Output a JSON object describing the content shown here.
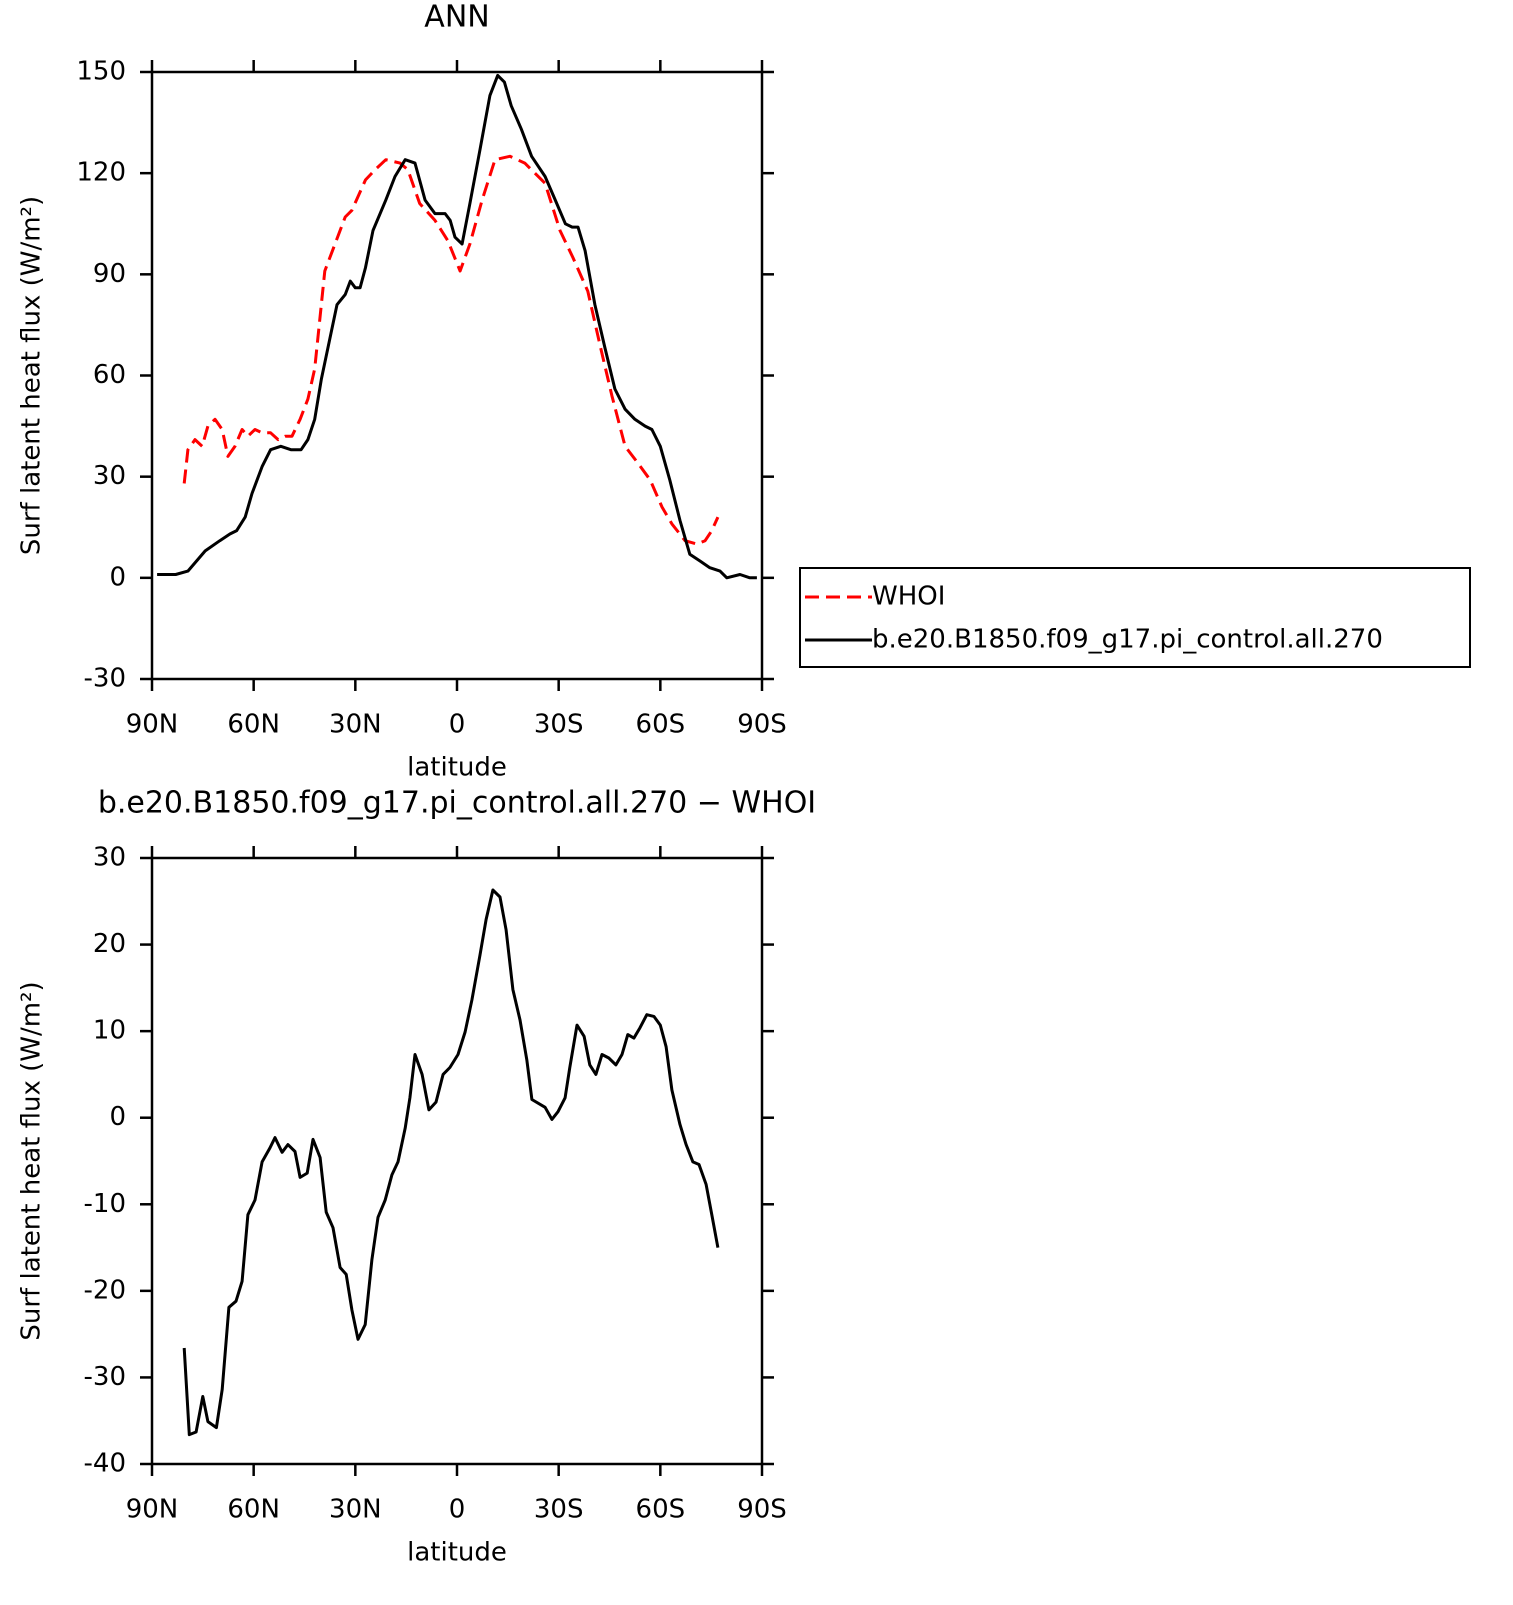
{
  "chart_data": [
    {
      "type": "line",
      "title": "ANN",
      "xlabel": "latitude",
      "ylabel": "Surf latent heat flux (W/m²)",
      "xlim": [
        90,
        -90
      ],
      "xticks": [
        {
          "value": 90,
          "label": "90N"
        },
        {
          "value": 60,
          "label": "60N"
        },
        {
          "value": 30,
          "label": "30N"
        },
        0,
        {
          "value": -30,
          "label": "30S"
        },
        {
          "value": -60,
          "label": "60S"
        },
        {
          "value": -90,
          "label": "90S"
        }
      ],
      "ylim": [
        -30,
        150
      ],
      "yticks": [
        -30,
        0,
        30,
        60,
        90,
        120,
        150
      ],
      "legend": "right",
      "series": [
        {
          "name": "WHOI",
          "color": "#ff0000",
          "dash": "dashed",
          "x": [
            80.5,
            79.4,
            77.3,
            75.2,
            73.5,
            71.4,
            69.3,
            67.6,
            65.5,
            63.4,
            61.7,
            59.6,
            57.5,
            55,
            52.8,
            50.7,
            48.7,
            46.3,
            44,
            42,
            39,
            36,
            33,
            31,
            27,
            24.2,
            21,
            16.8,
            14.5,
            11,
            6.5,
            2.7,
            -0.9,
            -3.8,
            -7.4,
            -11.2,
            -15.6,
            -20,
            -26,
            -30.4,
            -34.2,
            -38.6,
            -42.2,
            -45.7,
            -49.6,
            -53.4,
            -57,
            -60.5,
            -63.4,
            -67.3,
            -70.8,
            -73.2,
            -75.2,
            -77
          ],
          "values": [
            28,
            38,
            41,
            39,
            45,
            47,
            44,
            36,
            39,
            44,
            42,
            44,
            43,
            43,
            41,
            42,
            42,
            47,
            53,
            62,
            91,
            99,
            107,
            109,
            118,
            121,
            124,
            123,
            121,
            111,
            106,
            100,
            91,
            99,
            112,
            124,
            125,
            123,
            117,
            103,
            95,
            85,
            69,
            54,
            39,
            34,
            29,
            21,
            16,
            11,
            10,
            11,
            14,
            18
          ]
        },
        {
          "name": "b.e20.B1850.f09_g17.pi_control.all.270",
          "color": "#000000",
          "dash": "solid",
          "x": [
            88.5,
            83,
            79.4,
            74.3,
            70,
            67,
            65,
            62.5,
            60.5,
            57.5,
            55,
            52,
            49,
            46,
            44,
            42,
            40,
            37.5,
            35.4,
            33,
            31.5,
            30,
            28.6,
            27,
            24.8,
            21,
            18.3,
            15.3,
            12.4,
            9.4,
            6.5,
            3.5,
            2,
            0.6,
            -1.5,
            -3.8,
            -6.8,
            -9.7,
            -12,
            -14,
            -16,
            -19,
            -22,
            -26,
            -29,
            -32,
            -34,
            -35.7,
            -37.8,
            -40.7,
            -43.7,
            -46.6,
            -49.6,
            -52.5,
            -55.5,
            -57.5,
            -60,
            -62.8,
            -65.8,
            -68.7,
            -71.7,
            -74.6,
            -77.6,
            -79.6,
            -83.5,
            -86.4,
            -88.5
          ],
          "values": [
            1,
            1,
            2,
            8,
            11,
            13,
            14,
            18,
            25,
            33,
            38,
            39,
            38,
            38,
            41,
            47,
            59,
            71,
            81,
            84,
            88,
            86,
            86,
            92,
            103,
            112,
            119,
            124,
            123,
            112,
            108,
            108,
            106,
            101,
            99,
            111,
            127,
            143,
            149,
            147,
            140,
            133,
            125,
            119,
            112,
            105,
            104,
            104,
            97,
            81,
            68,
            56,
            50,
            47,
            45,
            44,
            39,
            29,
            17,
            7,
            5,
            3,
            2,
            0,
            1,
            0,
            0
          ]
        }
      ]
    },
    {
      "type": "line",
      "title": "b.e20.B1850.f09_g17.pi_control.all.270 − WHOI",
      "xlabel": "latitude",
      "ylabel": "Surf latent heat flux (W/m²)",
      "xlim": [
        90,
        -90
      ],
      "xticks": [
        {
          "value": 90,
          "label": "90N"
        },
        {
          "value": 60,
          "label": "60N"
        },
        {
          "value": 30,
          "label": "30N"
        },
        0,
        {
          "value": -30,
          "label": "30S"
        },
        {
          "value": -60,
          "label": "60S"
        },
        {
          "value": -90,
          "label": "90S"
        }
      ],
      "ylim": [
        -40,
        30
      ],
      "yticks": [
        -40,
        -30,
        -20,
        -10,
        0,
        10,
        20,
        30
      ],
      "series": [
        {
          "color": "#000000",
          "dash": "solid",
          "x": [
            80.5,
            79,
            77,
            75,
            73.5,
            71,
            69.3,
            67.3,
            65.2,
            63.4,
            61.7,
            59.6,
            57.5,
            55.2,
            53.7,
            51.6,
            49.9,
            47.8,
            46.3,
            44.2,
            42.5,
            40.4,
            38.6,
            36.6,
            34.5,
            32.7,
            31,
            29.2,
            27.1,
            25.1,
            23.3,
            21.2,
            19.2,
            17.4,
            15.3,
            13.9,
            12.4,
            10.3,
            8.3,
            6.2,
            4.1,
            2.1,
            -0.3,
            -2.4,
            -4.4,
            -6.8,
            -8.6,
            -10.6,
            -12.7,
            -14.5,
            -16.5,
            -18.6,
            -20.6,
            -22.1,
            -26,
            -28,
            -29.8,
            -31.9,
            -33.3,
            -35.4,
            -37.5,
            -39.2,
            -41,
            -42.8,
            -44.8,
            -46.9,
            -48.7,
            -50.4,
            -52.2,
            -54,
            -56,
            -58.1,
            -60,
            -61.7,
            -63.4,
            -65.8,
            -67.6,
            -69.6,
            -71.4,
            -73.5,
            -75.2,
            -77
          ],
          "values": [
            -26.6,
            -36.6,
            -36.3,
            -32.2,
            -35.1,
            -35.8,
            -31.4,
            -21.9,
            -21.2,
            -18.9,
            -11.2,
            -9.5,
            -5.1,
            -3.5,
            -2.3,
            -4,
            -3.1,
            -3.9,
            -6.9,
            -6.4,
            -2.5,
            -4.6,
            -10.9,
            -12.7,
            -17.3,
            -18.1,
            -22.2,
            -25.6,
            -23.9,
            -16.4,
            -11.5,
            -9.5,
            -6.6,
            -5.1,
            -1.2,
            2.3,
            7.3,
            5,
            0.9,
            1.8,
            5,
            5.8,
            7.3,
            9.9,
            13.6,
            18.8,
            22.9,
            26.3,
            25.5,
            21.7,
            14.8,
            11.3,
            6.7,
            2.1,
            1.2,
            -0.2,
            0.7,
            2.3,
            5.8,
            10.7,
            9.4,
            6.1,
            5,
            7.3,
            6.9,
            6.1,
            7.3,
            9.6,
            9.2,
            10.4,
            11.9,
            11.7,
            10.7,
            8.2,
            3.2,
            -0.8,
            -3.1,
            -5.1,
            -5.4,
            -7.7,
            -11.2,
            -15
          ]
        }
      ]
    }
  ]
}
